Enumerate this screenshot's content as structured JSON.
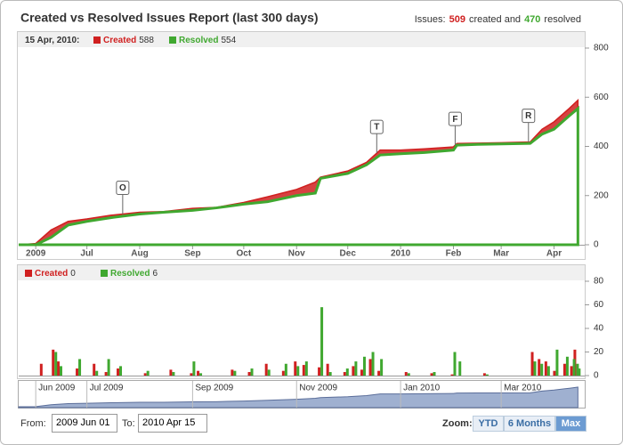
{
  "header": {
    "title": "Created vs Resolved Issues Report (last 300 days)",
    "summary": [
      "Issues:",
      "509",
      "created and",
      "470",
      "resolved"
    ]
  },
  "chart_data": [
    {
      "type": "area",
      "legend_date": "15 Apr, 2010:",
      "x": [
        "2009-05-22",
        "2009-06-01",
        "2009-06-10",
        "2009-06-20",
        "2009-07-01",
        "2009-07-15",
        "2009-08-01",
        "2009-08-15",
        "2009-09-01",
        "2009-09-15",
        "2009-10-01",
        "2009-10-15",
        "2009-11-01",
        "2009-11-12",
        "2009-11-15",
        "2009-12-01",
        "2009-12-12",
        "2009-12-20",
        "2010-01-01",
        "2010-01-15",
        "2010-02-01",
        "2010-02-03",
        "2010-02-15",
        "2010-03-01",
        "2010-03-18",
        "2010-03-25",
        "2010-04-01",
        "2010-04-10",
        "2010-04-15"
      ],
      "series": [
        {
          "name": "Created",
          "color": "#d02020",
          "values": [
            0,
            5,
            60,
            95,
            105,
            120,
            132,
            135,
            148,
            152,
            172,
            195,
            225,
            255,
            275,
            300,
            335,
            385,
            385,
            390,
            398,
            412,
            413,
            415,
            418,
            470,
            500,
            555,
            588
          ]
        },
        {
          "name": "Resolved",
          "color": "#40a830",
          "values": [
            0,
            0,
            30,
            80,
            95,
            110,
            125,
            132,
            140,
            150,
            165,
            175,
            200,
            210,
            270,
            290,
            325,
            365,
            370,
            375,
            385,
            405,
            408,
            410,
            412,
            450,
            470,
            525,
            554
          ]
        }
      ],
      "flags": [
        {
          "x": "2009-07-22",
          "title": "O"
        },
        {
          "x": "2009-12-18",
          "title": "T"
        },
        {
          "x": "2010-02-02",
          "title": "F"
        },
        {
          "x": "2010-03-17",
          "title": "R"
        }
      ],
      "xlim": [
        "2009-05-22",
        "2010-04-19"
      ],
      "xticks": [
        {
          "value": "2009-06-01",
          "label": "2009"
        },
        {
          "value": "2009-07-01",
          "label": "Jul"
        },
        {
          "value": "2009-08-01",
          "label": "Aug"
        },
        {
          "value": "2009-09-01",
          "label": "Sep"
        },
        {
          "value": "2009-10-01",
          "label": "Oct"
        },
        {
          "value": "2009-11-01",
          "label": "Nov"
        },
        {
          "value": "2009-12-01",
          "label": "Dec"
        },
        {
          "value": "2010-01-01",
          "label": "2010"
        },
        {
          "value": "2010-02-01",
          "label": "Feb"
        },
        {
          "value": "2010-03-01",
          "label": "Mar"
        },
        {
          "value": "2010-04-01",
          "label": "Apr"
        }
      ],
      "ylim": [
        0,
        800
      ],
      "yticks": [
        0,
        200,
        400,
        600,
        800
      ]
    },
    {
      "type": "bar",
      "x": [
        "2009-06-05",
        "2009-06-12",
        "2009-06-15",
        "2009-06-26",
        "2009-07-06",
        "2009-07-13",
        "2009-07-20",
        "2009-08-05",
        "2009-08-20",
        "2009-09-01",
        "2009-09-05",
        "2009-09-25",
        "2009-10-05",
        "2009-10-15",
        "2009-10-25",
        "2009-11-01",
        "2009-11-06",
        "2009-11-15",
        "2009-11-20",
        "2009-11-30",
        "2009-12-05",
        "2009-12-10",
        "2009-12-15",
        "2009-12-20",
        "2010-01-05",
        "2010-01-20",
        "2010-02-01",
        "2010-02-04",
        "2010-02-20",
        "2010-03-20",
        "2010-03-24",
        "2010-03-28",
        "2010-04-02",
        "2010-04-08",
        "2010-04-12",
        "2010-04-14",
        "2010-04-15"
      ],
      "series": [
        {
          "name": "Created",
          "color": "#d02020",
          "values": [
            10,
            22,
            12,
            6,
            10,
            3,
            6,
            2,
            5,
            2,
            4,
            5,
            3,
            10,
            4,
            12,
            9,
            7,
            10,
            3,
            8,
            5,
            14,
            4,
            3,
            2,
            1,
            0,
            2,
            20,
            14,
            12,
            4,
            10,
            8,
            22,
            0
          ]
        },
        {
          "name": "Resolved",
          "color": "#40a830",
          "values": [
            0,
            20,
            8,
            14,
            4,
            14,
            8,
            4,
            3,
            12,
            2,
            4,
            6,
            5,
            10,
            8,
            12,
            58,
            3,
            6,
            12,
            16,
            20,
            14,
            2,
            3,
            20,
            12,
            1,
            12,
            10,
            8,
            22,
            16,
            14,
            10,
            6
          ]
        }
      ],
      "xlim": [
        "2009-05-22",
        "2010-04-19"
      ],
      "ylim": [
        0,
        80
      ],
      "yticks": [
        0,
        20,
        40,
        60,
        80
      ]
    }
  ],
  "navigator": {
    "xticks": [
      {
        "value": "2009-06-01",
        "label": "Jun 2009"
      },
      {
        "value": "2009-07-01",
        "label": "Jul 2009"
      },
      {
        "value": "2009-09-01",
        "label": "Sep 2009"
      },
      {
        "value": "2009-11-01",
        "label": "Nov 2009"
      },
      {
        "value": "2010-01-01",
        "label": "Jan 2010"
      },
      {
        "value": "2010-03-01",
        "label": "Mar 2010"
      }
    ]
  },
  "controls": {
    "from_label": "From:",
    "from": "2009 Jun 01",
    "to_label": "To:",
    "to": "2010 Apr 15",
    "zoom_label": "Zoom:",
    "zoom": [
      "YTD",
      "6 Months",
      "Max"
    ],
    "selected": "Max"
  }
}
